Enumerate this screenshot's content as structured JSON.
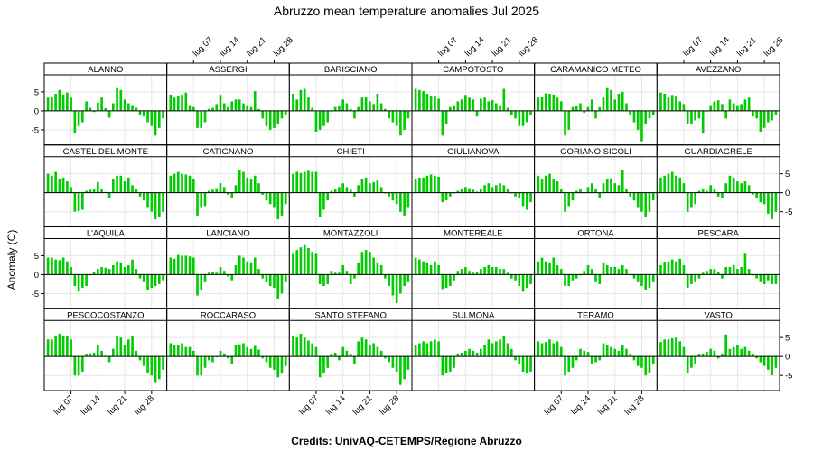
{
  "chart_data": {
    "type": "bar",
    "title": "Abruzzo mean temperature anomalies Jul 2025",
    "ylabel": "Anomaly (C)",
    "credits": "Credits: UnivAQ-CETEMPS/Regione Abruzzo",
    "x_ticks": [
      "lug 07",
      "lug 14",
      "lug 21",
      "lug 28"
    ],
    "x_tick_days": [
      7,
      14,
      21,
      28
    ],
    "y_ticks": [
      -5,
      0,
      5
    ],
    "ylim": [
      -9,
      9.5
    ],
    "days": [
      1,
      2,
      3,
      4,
      5,
      6,
      7,
      8,
      9,
      10,
      11,
      12,
      13,
      14,
      15,
      16,
      17,
      18,
      19,
      20,
      21,
      22,
      23,
      24,
      25,
      26,
      27,
      28,
      29,
      30,
      31
    ],
    "grid": true,
    "bar_color": "#00cc00",
    "panels": [
      {
        "name": "ALANNO",
        "values": [
          3.5,
          3.8,
          4.5,
          5.5,
          4.3,
          4.8,
          3.5,
          -6.0,
          -4.0,
          -3.0,
          2.5,
          0.8,
          -0.3,
          2.2,
          3.5,
          0.7,
          -1.8,
          2.0,
          6.0,
          5.5,
          3.0,
          2.0,
          1.5,
          0.8,
          -1.0,
          -1.5,
          -3.0,
          -4.0,
          -6.5,
          -4.5,
          -2.0
        ]
      },
      {
        "name": "ASSERGI",
        "values": [
          4.3,
          3.5,
          4.0,
          4.3,
          4.8,
          1.5,
          1.0,
          -4.5,
          -4.5,
          -3.0,
          0.5,
          0.8,
          1.8,
          4.2,
          2.0,
          1.0,
          2.5,
          3.0,
          3.0,
          2.0,
          1.5,
          1.0,
          5.2,
          0.5,
          -2.0,
          -4.0,
          -5.0,
          -4.5,
          -3.5,
          -2.0,
          -1.0
        ]
      },
      {
        "name": "BARISCIANO",
        "values": [
          4.5,
          3.0,
          5.5,
          5.8,
          3.5,
          0.8,
          -5.5,
          -5.0,
          -4.0,
          -3.0,
          0.0,
          1.0,
          1.2,
          3.0,
          2.0,
          0.5,
          -2.0,
          1.0,
          3.5,
          3.8,
          2.5,
          1.8,
          4.5,
          2.0,
          0.5,
          -2.0,
          -3.0,
          -4.0,
          -6.5,
          -5.0,
          -2.0
        ]
      },
      {
        "name": "CAMPOTOSTO",
        "values": [
          5.8,
          5.5,
          5.2,
          4.5,
          4.0,
          4.0,
          3.2,
          -6.5,
          -3.5,
          1.0,
          1.5,
          2.5,
          3.0,
          4.2,
          3.5,
          3.0,
          -1.5,
          3.2,
          3.5,
          2.5,
          2.8,
          2.0,
          1.5,
          5.8,
          0.8,
          -1.0,
          -2.0,
          -4.0,
          -4.0,
          -3.0,
          -1.0
        ]
      },
      {
        "name": "CARAMANICO METEO",
        "values": [
          3.5,
          3.8,
          4.6,
          4.5,
          4.3,
          3.5,
          2.5,
          -6.5,
          -5.0,
          1.0,
          1.2,
          2.0,
          -0.5,
          1.0,
          3.0,
          -2.0,
          1.0,
          3.5,
          6.0,
          5.5,
          3.0,
          4.5,
          5.0,
          2.0,
          -1.0,
          -3.0,
          -5.0,
          -8.0,
          -3.5,
          -2.0,
          -1.0
        ]
      },
      {
        "name": "AVEZZANO",
        "values": [
          4.8,
          4.5,
          3.5,
          4.2,
          4.0,
          2.5,
          1.8,
          -3.5,
          -3.5,
          -2.5,
          -2.0,
          -6.0,
          0.0,
          1.5,
          2.5,
          2.8,
          1.8,
          -2.0,
          3.0,
          2.0,
          1.5,
          1.8,
          3.0,
          3.5,
          -1.5,
          -2.0,
          -5.5,
          -4.5,
          -3.0,
          -2.5,
          -1.0
        ]
      },
      {
        "name": "CASTEL DEL MONTE",
        "values": [
          5.0,
          4.5,
          5.5,
          3.5,
          4.0,
          3.0,
          1.5,
          -5.0,
          -4.8,
          -4.5,
          0.5,
          0.8,
          1.0,
          2.8,
          1.0,
          0.2,
          -1.5,
          3.5,
          4.5,
          4.5,
          3.0,
          4.0,
          2.0,
          1.0,
          -1.0,
          -2.0,
          -4.0,
          -5.0,
          -7.0,
          -6.5,
          -5.0
        ]
      },
      {
        "name": "CATIGNANO",
        "values": [
          4.5,
          5.0,
          5.5,
          5.0,
          4.8,
          4.5,
          3.5,
          -6.0,
          -4.0,
          -3.5,
          0.5,
          0.8,
          1.2,
          2.5,
          1.5,
          -0.5,
          -1.5,
          2.0,
          6.0,
          5.5,
          4.0,
          3.5,
          4.5,
          2.5,
          -0.5,
          -2.0,
          -3.0,
          -4.0,
          -7.0,
          -6.0,
          -3.0
        ]
      },
      {
        "name": "CHIETI",
        "values": [
          5.0,
          5.5,
          5.2,
          5.5,
          5.8,
          5.5,
          5.5,
          -6.5,
          -4.5,
          -2.0,
          0.5,
          1.0,
          1.5,
          2.5,
          1.5,
          0.8,
          -1.0,
          2.0,
          3.5,
          4.0,
          2.5,
          2.8,
          3.2,
          1.5,
          0.0,
          -1.0,
          -2.0,
          -3.0,
          -5.0,
          -6.0,
          -4.0
        ]
      },
      {
        "name": "GIULIANOVA",
        "values": [
          3.5,
          4.0,
          4.0,
          4.5,
          4.8,
          4.5,
          4.2,
          -2.5,
          -2.0,
          -1.0,
          0.0,
          0.5,
          1.0,
          1.5,
          1.2,
          0.8,
          0.3,
          1.0,
          2.0,
          2.5,
          1.5,
          2.0,
          2.5,
          2.0,
          1.0,
          0.0,
          -1.0,
          -1.5,
          -3.5,
          -4.5,
          -2.5
        ]
      },
      {
        "name": "GORIANO SICOLI",
        "values": [
          4.5,
          3.5,
          4.5,
          5.0,
          3.5,
          3.0,
          1.0,
          -5.0,
          -3.5,
          -2.0,
          0.5,
          1.0,
          0.0,
          1.5,
          2.5,
          1.0,
          -1.5,
          2.5,
          3.5,
          3.8,
          2.5,
          2.0,
          6.0,
          1.0,
          -1.0,
          -2.0,
          -4.0,
          -5.0,
          -6.5,
          -5.0,
          -2.0
        ]
      },
      {
        "name": "GUARDIAGRELE",
        "values": [
          4.0,
          4.5,
          5.0,
          5.5,
          4.5,
          4.0,
          2.5,
          -5.0,
          -4.0,
          -3.0,
          0.5,
          1.0,
          0.5,
          2.0,
          1.0,
          -1.0,
          -1.5,
          2.5,
          4.5,
          4.0,
          3.0,
          2.5,
          3.0,
          2.0,
          -0.5,
          -1.5,
          -2.5,
          -3.0,
          -5.5,
          -7.0,
          -5.0
        ]
      },
      {
        "name": "L'AQUILA",
        "values": [
          4.5,
          4.5,
          4.0,
          3.8,
          4.5,
          3.5,
          2.0,
          -3.0,
          -4.5,
          -3.5,
          -3.0,
          0.0,
          0.8,
          1.5,
          2.0,
          1.8,
          1.5,
          2.5,
          3.5,
          3.0,
          2.0,
          2.5,
          4.0,
          1.5,
          -1.0,
          -2.0,
          -4.0,
          -3.5,
          -3.0,
          -2.5,
          -1.5
        ]
      },
      {
        "name": "LANCIANO",
        "values": [
          4.5,
          4.2,
          5.2,
          5.0,
          5.0,
          4.8,
          4.5,
          -5.5,
          -4.0,
          -2.0,
          0.5,
          0.8,
          0.5,
          2.0,
          1.0,
          -0.5,
          -1.5,
          2.5,
          5.0,
          4.5,
          3.5,
          3.0,
          4.5,
          1.5,
          -1.0,
          -2.0,
          -3.0,
          -3.5,
          -6.5,
          -5.0,
          -2.0
        ]
      },
      {
        "name": "MONTAZZOLI",
        "values": [
          5.5,
          6.5,
          7.2,
          7.8,
          7.0,
          6.0,
          5.5,
          -2.5,
          -3.0,
          -2.5,
          1.0,
          0.5,
          0.5,
          2.5,
          1.0,
          -2.5,
          -1.0,
          3.0,
          6.0,
          6.5,
          6.0,
          4.5,
          3.0,
          2.5,
          -1.0,
          -3.0,
          -5.5,
          -7.5,
          -5.0,
          -3.0,
          -2.0
        ]
      },
      {
        "name": "MONTEREALE",
        "values": [
          4.5,
          4.0,
          3.5,
          3.0,
          2.5,
          3.5,
          2.5,
          -3.8,
          -3.5,
          -3.0,
          -1.5,
          1.0,
          1.5,
          2.0,
          1.0,
          0.5,
          0.8,
          1.5,
          2.0,
          2.5,
          2.0,
          2.0,
          1.5,
          1.5,
          0.5,
          -1.0,
          -1.5,
          -3.0,
          -4.5,
          -3.5,
          -2.5
        ]
      },
      {
        "name": "ORTONA",
        "values": [
          3.5,
          4.5,
          3.5,
          3.0,
          4.5,
          2.5,
          1.5,
          -3.0,
          -3.0,
          -1.5,
          -1.0,
          0.0,
          1.0,
          2.5,
          1.5,
          -2.0,
          -2.5,
          3.0,
          2.5,
          2.0,
          2.0,
          1.5,
          2.5,
          1.5,
          0.0,
          -1.0,
          -2.0,
          -3.0,
          -4.0,
          -3.5,
          -2.0
        ]
      },
      {
        "name": "PESCARA",
        "values": [
          2.5,
          3.2,
          3.5,
          4.0,
          3.5,
          4.2,
          2.5,
          -3.5,
          -2.5,
          -2.0,
          -1.0,
          0.5,
          1.0,
          1.5,
          1.5,
          0.8,
          -1.0,
          2.0,
          2.0,
          2.5,
          1.5,
          2.0,
          5.5,
          1.5,
          0.0,
          -1.0,
          -2.0,
          -2.5,
          -1.5,
          -2.5,
          -2.5
        ]
      },
      {
        "name": "PESCOCOSTANZO",
        "values": [
          4.5,
          4.5,
          5.5,
          6.0,
          5.5,
          5.5,
          4.5,
          -5.0,
          -5.0,
          -4.0,
          0.5,
          0.8,
          1.0,
          3.0,
          1.5,
          0.2,
          -1.5,
          2.0,
          5.5,
          5.0,
          3.0,
          4.5,
          5.5,
          1.5,
          -1.0,
          -2.5,
          -4.5,
          -5.0,
          -7.0,
          -6.0,
          -3.5
        ]
      },
      {
        "name": "ROCCARASO",
        "values": [
          3.5,
          3.0,
          3.0,
          3.5,
          2.5,
          2.5,
          1.5,
          -5.0,
          -5.0,
          -3.0,
          -1.0,
          -1.5,
          0.0,
          1.5,
          0.8,
          -0.5,
          -2.0,
          3.0,
          3.2,
          3.5,
          2.5,
          2.0,
          2.8,
          1.8,
          -0.5,
          -1.5,
          -3.0,
          -3.5,
          -5.5,
          -4.5,
          -2.5
        ]
      },
      {
        "name": "SANTO STEFANO",
        "values": [
          5.5,
          5.0,
          6.0,
          5.0,
          4.2,
          3.5,
          2.5,
          -5.5,
          -4.5,
          -3.0,
          0.5,
          1.0,
          -1.0,
          2.5,
          1.5,
          0.5,
          -2.0,
          4.0,
          5.0,
          4.5,
          3.0,
          3.5,
          2.5,
          1.5,
          -0.5,
          -1.5,
          -3.0,
          -4.0,
          -7.5,
          -6.0,
          -3.5
        ]
      },
      {
        "name": "SULMONA",
        "values": [
          3.0,
          3.5,
          4.0,
          3.5,
          4.0,
          4.5,
          4.0,
          -5.0,
          -4.5,
          -4.0,
          -3.0,
          0.5,
          1.0,
          1.5,
          2.0,
          1.5,
          1.0,
          2.0,
          3.0,
          4.5,
          3.5,
          4.0,
          4.5,
          5.5,
          3.5,
          2.0,
          -1.0,
          -2.0,
          -4.0,
          -4.5,
          -4.0
        ]
      },
      {
        "name": "TERAMO",
        "values": [
          4.0,
          3.5,
          3.8,
          4.5,
          3.5,
          4.0,
          2.5,
          -5.0,
          -4.0,
          -3.0,
          -1.0,
          2.0,
          1.5,
          1.2,
          -2.0,
          -1.5,
          -1.0,
          3.5,
          3.0,
          2.5,
          2.0,
          1.5,
          3.0,
          2.0,
          0.5,
          -1.0,
          -2.5,
          -3.0,
          -5.0,
          -4.5,
          -2.0
        ]
      },
      {
        "name": "VASTO",
        "values": [
          3.8,
          4.5,
          4.5,
          4.8,
          5.0,
          4.0,
          2.5,
          -4.5,
          -3.0,
          -2.0,
          0.5,
          0.8,
          1.2,
          2.0,
          1.5,
          -0.5,
          0.5,
          5.8,
          2.0,
          2.5,
          3.0,
          2.0,
          2.5,
          1.5,
          0.5,
          -0.5,
          -1.5,
          -2.5,
          -3.5,
          -5.0,
          -3.0
        ]
      }
    ]
  }
}
